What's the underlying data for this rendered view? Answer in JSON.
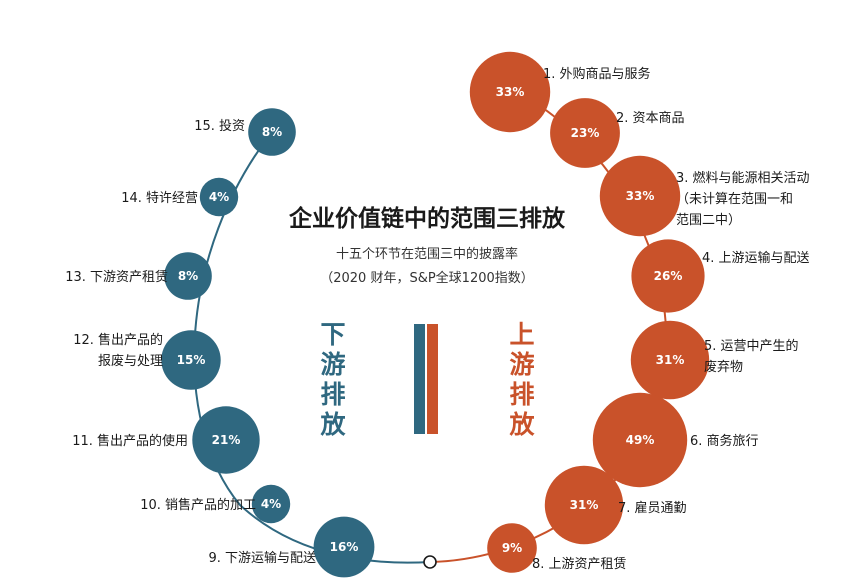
{
  "colors": {
    "upstream": "#c9522a",
    "downstream": "#2f6880",
    "arc_stroke_up": "#c9522a",
    "arc_stroke_down": "#2f6880"
  },
  "chart_data": {
    "type": "bubble",
    "title": "企业价值链中的范围三排放",
    "subtitle": "十五个环节在范围三中的披露率",
    "note": "（2020 财年，S&P全球1200指数）",
    "upstream_label": "上游排放",
    "downstream_label": "下游排放",
    "unit": "%",
    "categories": [
      {
        "id": 1,
        "label": "1. 外购商品与服务",
        "value": 33,
        "group": "upstream"
      },
      {
        "id": 2,
        "label": "2. 资本商品",
        "value": 23,
        "group": "upstream"
      },
      {
        "id": 3,
        "label": "3. 燃料与能源相关活动",
        "label2": "（未计算在范围一和",
        "label3": "范围二中）",
        "value": 33,
        "group": "upstream"
      },
      {
        "id": 4,
        "label": "4. 上游运输与配送",
        "value": 26,
        "group": "upstream"
      },
      {
        "id": 5,
        "label": "5. 运营中产生的",
        "label2": "废弃物",
        "value": 31,
        "group": "upstream"
      },
      {
        "id": 6,
        "label": "6. 商务旅行",
        "value": 49,
        "group": "upstream"
      },
      {
        "id": 7,
        "label": "7. 雇员通勤",
        "value": 31,
        "group": "upstream"
      },
      {
        "id": 8,
        "label": "8. 上游资产租赁",
        "value": 9,
        "group": "upstream"
      },
      {
        "id": 9,
        "label": "9. 下游运输与配送",
        "value": 16,
        "group": "downstream"
      },
      {
        "id": 10,
        "label": "10. 销售产品的加工",
        "value": 4,
        "group": "downstream"
      },
      {
        "id": 11,
        "label": "11. 售出产品的使用",
        "value": 21,
        "group": "downstream"
      },
      {
        "id": 12,
        "label": "12. 售出产品的",
        "label2": "报废与处理",
        "value": 15,
        "group": "downstream"
      },
      {
        "id": 13,
        "label": "13. 下游资产租赁",
        "value": 8,
        "group": "downstream"
      },
      {
        "id": 14,
        "label": "14. 特许经营",
        "value": 4,
        "group": "downstream"
      },
      {
        "id": 15,
        "label": "15. 投资",
        "value": 8,
        "group": "downstream"
      }
    ]
  }
}
